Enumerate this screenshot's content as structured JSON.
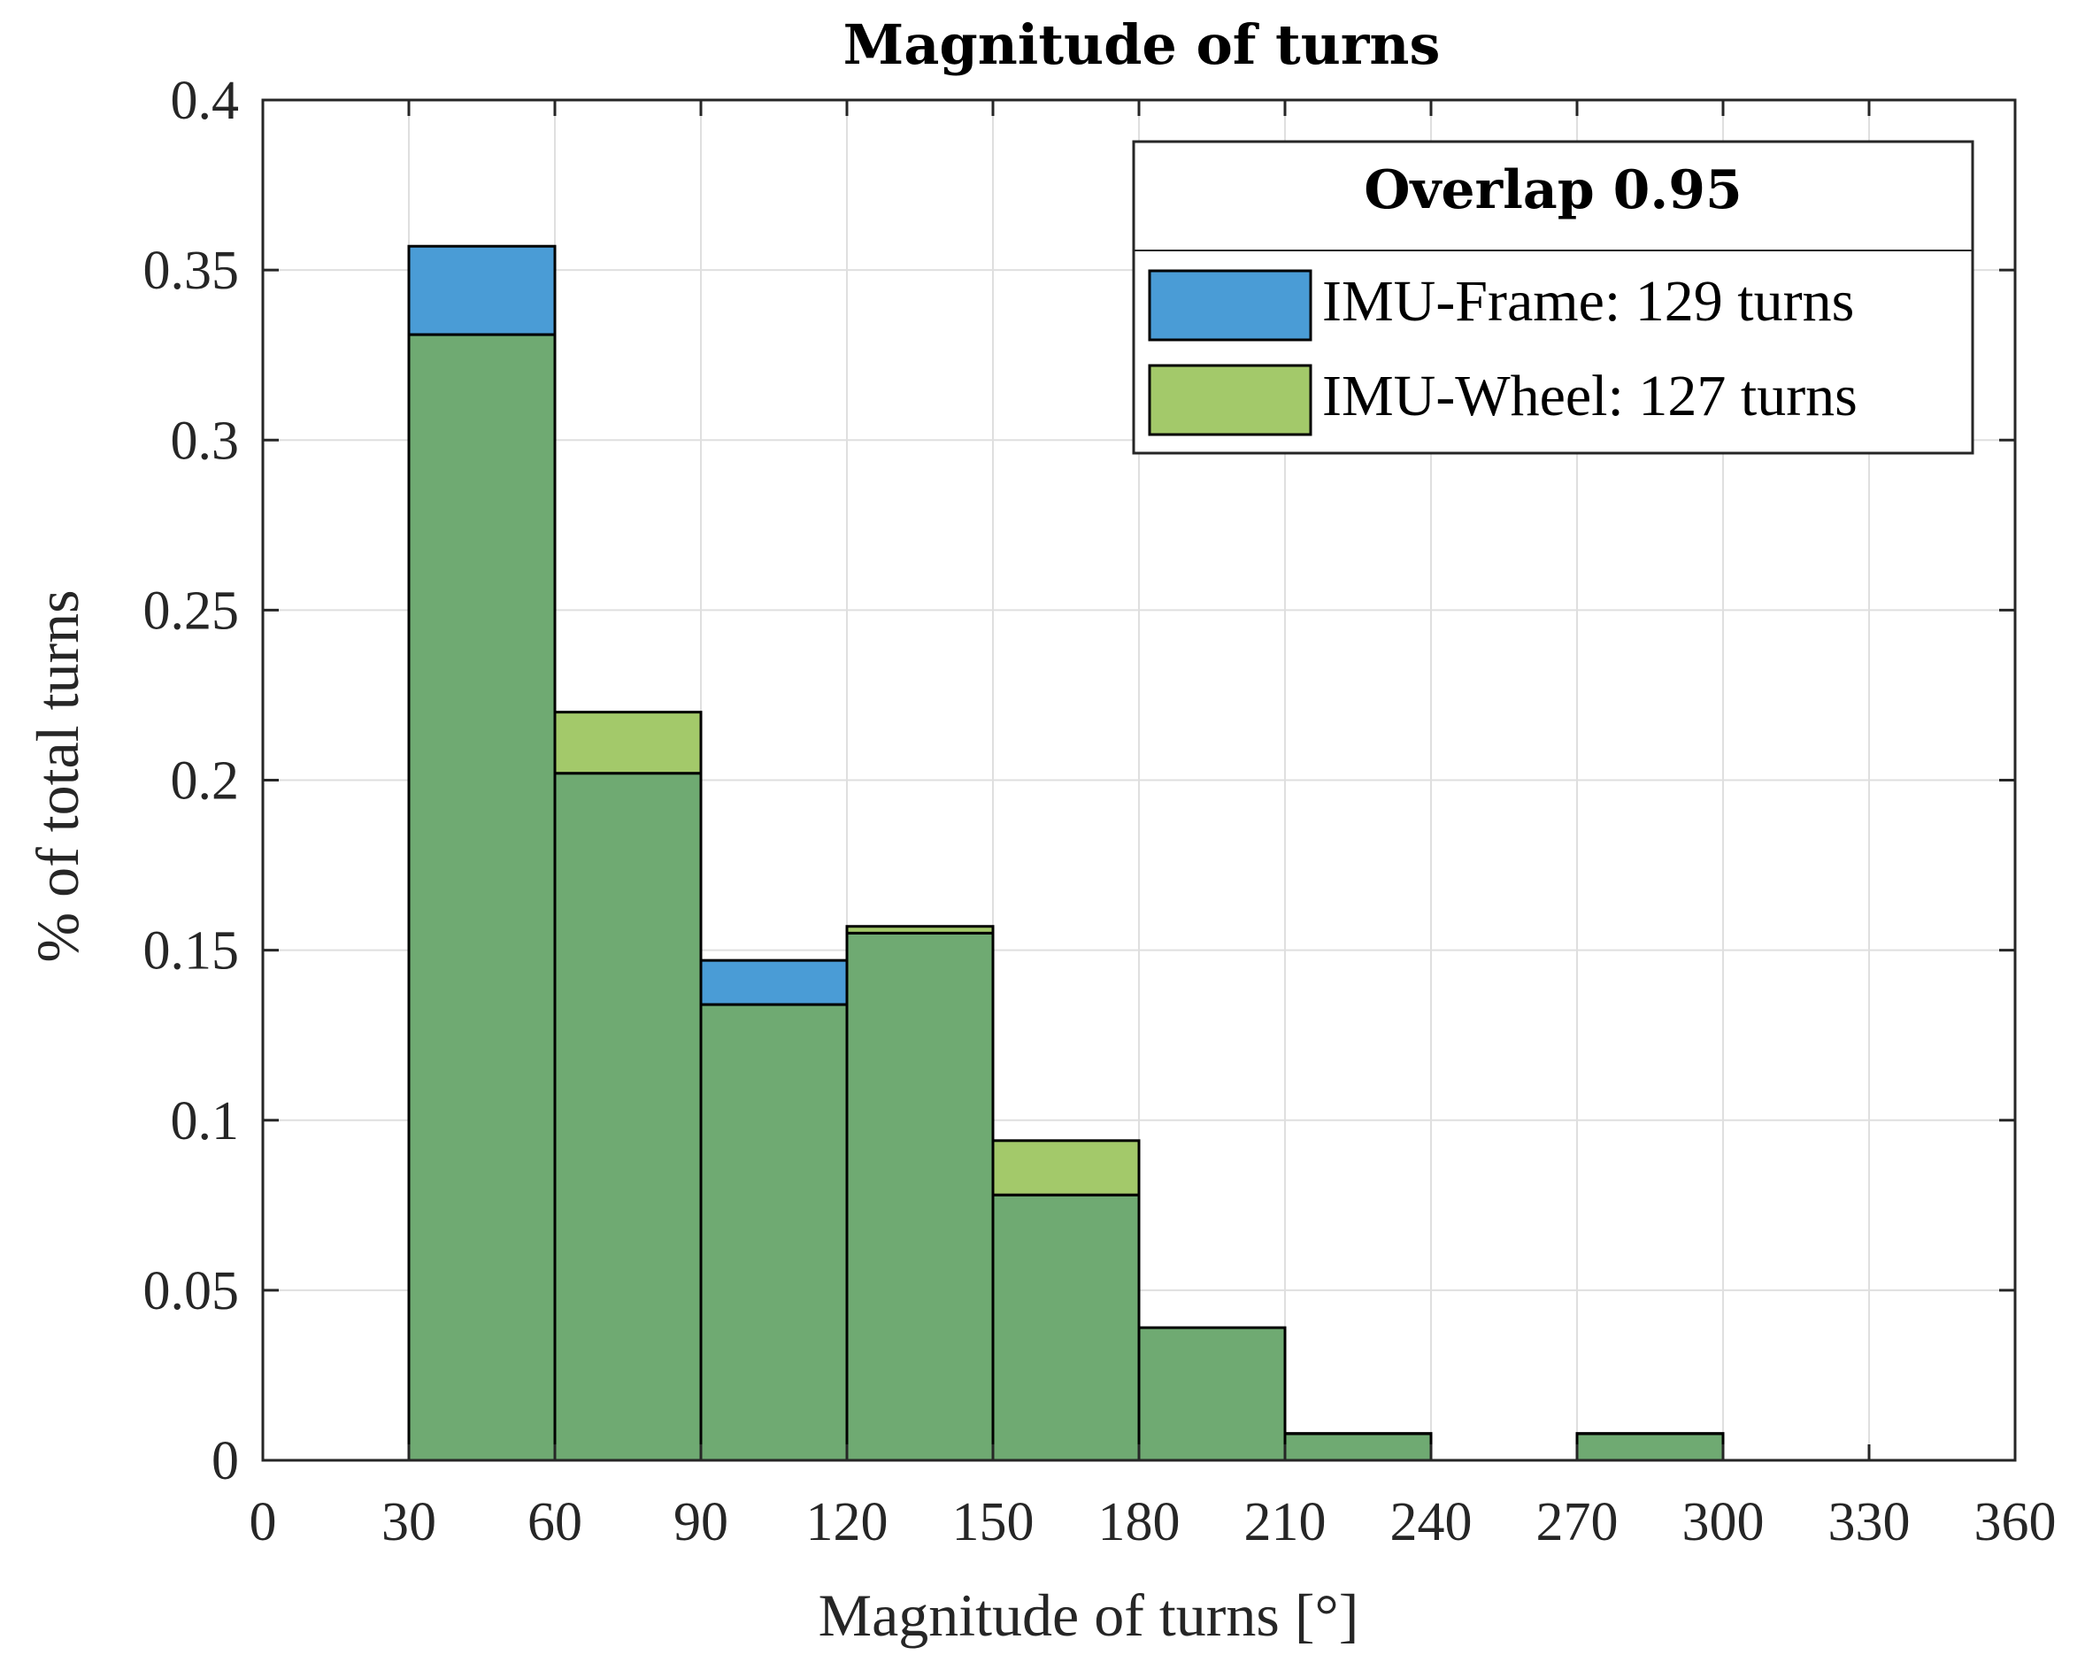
{
  "chart_data": {
    "type": "bar",
    "title": "Magnitude of turns",
    "xlabel": "Magnitude of turns [°]",
    "ylabel": "% of total turns",
    "xlim": [
      0,
      360
    ],
    "ylim": [
      0,
      0.4
    ],
    "x_ticks": [
      "0",
      "30",
      "60",
      "90",
      "120",
      "150",
      "180",
      "210",
      "240",
      "270",
      "300",
      "330",
      "360"
    ],
    "y_ticks": [
      "0",
      "0.05",
      "0.1",
      "0.15",
      "0.2",
      "0.25",
      "0.3",
      "0.35",
      "0.4"
    ],
    "bin_edges": [
      0,
      30,
      60,
      90,
      120,
      150,
      180,
      210,
      240,
      270,
      300,
      330,
      360
    ],
    "grid": true,
    "legend": {
      "title": "Overlap 0.95",
      "position": "top-right"
    },
    "series": [
      {
        "name": "IMU-Frame: 129 turns",
        "color": "#4a9cd6",
        "values": [
          0,
          0.357,
          0.202,
          0.147,
          0.155,
          0.078,
          0.039,
          0.0078,
          0,
          0.0078,
          0,
          0
        ]
      },
      {
        "name": "IMU-Wheel: 127 turns",
        "color": "#a3c96a",
        "values": [
          0,
          0.331,
          0.22,
          0.134,
          0.157,
          0.094,
          0.039,
          0.0079,
          0,
          0.0079,
          0,
          0
        ]
      }
    ],
    "overlap_color": "#6faa72"
  }
}
